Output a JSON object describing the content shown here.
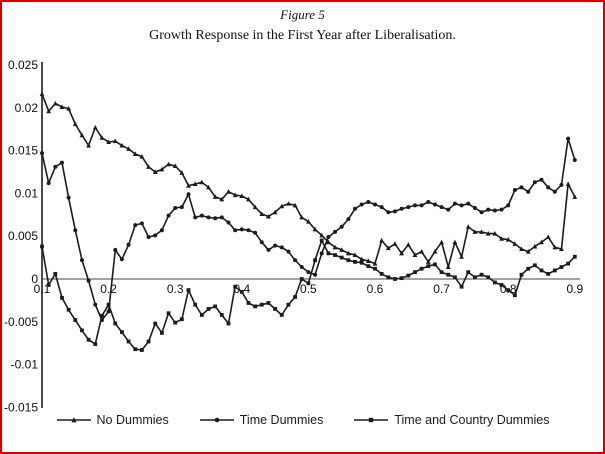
{
  "figure": {
    "label": "Figure 5",
    "title": "Growth Response in the First Year after Liberalisation."
  },
  "chart_data": {
    "type": "line",
    "title": "Growth Response in the First Year after Liberalisation.",
    "xlabel": "",
    "ylabel": "",
    "xlim": [
      0.1,
      0.9
    ],
    "ylim": [
      -0.015,
      0.025
    ],
    "grid": false,
    "legend_position": "bottom",
    "line_color": "#1c1c1c",
    "axis_color": "#4a4a4a",
    "x_tick_labels": [
      "0.1",
      "0.2",
      "0.3",
      "0.4",
      "0.5",
      "0.6",
      "0.7",
      "0.8",
      "0.9"
    ],
    "x_tick_values": [
      0.1,
      0.2,
      0.3,
      0.4,
      0.5,
      0.6,
      0.7,
      0.8,
      0.9
    ],
    "y_tick_labels": [
      "0.025",
      "0.02",
      "0.015",
      "0.01",
      "0.005",
      "0",
      "-0.005",
      "-0.01",
      "-0.015"
    ],
    "y_tick_values": [
      0.025,
      0.02,
      0.015,
      0.01,
      0.005,
      0,
      -0.005,
      -0.01,
      -0.015
    ],
    "x": [
      0.1,
      0.11,
      0.12,
      0.13,
      0.14,
      0.15,
      0.16,
      0.17,
      0.18,
      0.19,
      0.2,
      0.21,
      0.22,
      0.23,
      0.24,
      0.25,
      0.26,
      0.27,
      0.28,
      0.29,
      0.3,
      0.31,
      0.32,
      0.33,
      0.34,
      0.35,
      0.36,
      0.37,
      0.38,
      0.39,
      0.4,
      0.41,
      0.42,
      0.43,
      0.44,
      0.45,
      0.46,
      0.47,
      0.48,
      0.49,
      0.5,
      0.51,
      0.52,
      0.53,
      0.54,
      0.55,
      0.56,
      0.57,
      0.58,
      0.59,
      0.6,
      0.61,
      0.62,
      0.63,
      0.64,
      0.65,
      0.66,
      0.67,
      0.68,
      0.69,
      0.7,
      0.71,
      0.72,
      0.73,
      0.74,
      0.75,
      0.76,
      0.77,
      0.78,
      0.79,
      0.8,
      0.81,
      0.82,
      0.83,
      0.84,
      0.85,
      0.86,
      0.87,
      0.88,
      0.89,
      0.9
    ],
    "series": [
      {
        "name": "No Dummies",
        "marker": "triangle",
        "values": [
          0.0216,
          0.0196,
          0.0205,
          0.0201,
          0.0199,
          0.0181,
          0.0168,
          0.0156,
          0.0177,
          0.0165,
          0.016,
          0.0161,
          0.0156,
          0.0152,
          0.0146,
          0.0143,
          0.0131,
          0.0125,
          0.0128,
          0.0134,
          0.0132,
          0.0124,
          0.0109,
          0.0111,
          0.0113,
          0.0107,
          0.0096,
          0.0093,
          0.0102,
          0.0098,
          0.0097,
          0.0093,
          0.0084,
          0.0076,
          0.0073,
          0.0078,
          0.0085,
          0.0088,
          0.0086,
          0.0072,
          0.0067,
          0.0058,
          0.0051,
          0.0043,
          0.0037,
          0.0034,
          0.003,
          0.0028,
          0.0023,
          0.0021,
          0.0018,
          0.0045,
          0.0036,
          0.0041,
          0.003,
          0.004,
          0.0028,
          0.0032,
          0.002,
          0.0032,
          0.0043,
          0.0014,
          0.0043,
          0.0026,
          0.0061,
          0.0055,
          0.0055,
          0.0053,
          0.0053,
          0.0047,
          0.0046,
          0.0041,
          0.0035,
          0.0032,
          0.0038,
          0.0043,
          0.0049,
          0.0037,
          0.0035,
          0.0111,
          0.0096
        ]
      },
      {
        "name": "Time Dummies",
        "marker": "circle",
        "values": [
          0.0147,
          0.0112,
          0.0131,
          0.0136,
          0.0095,
          0.0057,
          0.0022,
          -0.0002,
          -0.003,
          -0.0048,
          -0.0038,
          0.0034,
          0.0023,
          0.004,
          0.0063,
          0.0065,
          0.0049,
          0.0051,
          0.0057,
          0.0074,
          0.0083,
          0.0084,
          0.0099,
          0.0072,
          0.0074,
          0.0072,
          0.0071,
          0.0072,
          0.0066,
          0.0057,
          0.0058,
          0.0057,
          0.0054,
          0.0043,
          0.0034,
          0.0039,
          0.0037,
          0.0032,
          0.0022,
          0.0014,
          0.0008,
          0.0005,
          0.003,
          0.0049,
          0.0055,
          0.0061,
          0.007,
          0.0082,
          0.0087,
          0.009,
          0.0087,
          0.0084,
          0.0078,
          0.0079,
          0.0082,
          0.0084,
          0.0086,
          0.0086,
          0.009,
          0.0087,
          0.0084,
          0.0081,
          0.0088,
          0.0086,
          0.0088,
          0.0083,
          0.0078,
          0.0081,
          0.008,
          0.0081,
          0.0086,
          0.0104,
          0.0107,
          0.0102,
          0.0113,
          0.0116,
          0.0107,
          0.0102,
          0.011,
          0.0164,
          0.0139
        ]
      },
      {
        "name": "Time and Country Dummies",
        "marker": "square",
        "values": [
          0.0038,
          -0.0007,
          0.0006,
          -0.0022,
          -0.0036,
          -0.0048,
          -0.006,
          -0.0071,
          -0.0076,
          -0.0043,
          -0.003,
          -0.0052,
          -0.0062,
          -0.0073,
          -0.0082,
          -0.0083,
          -0.0073,
          -0.0052,
          -0.0063,
          -0.004,
          -0.0051,
          -0.0047,
          -0.0013,
          -0.003,
          -0.0042,
          -0.0035,
          -0.0032,
          -0.0042,
          -0.0052,
          -0.0009,
          -0.0015,
          -0.0028,
          -0.0032,
          -0.003,
          -0.0028,
          -0.0035,
          -0.0042,
          -0.003,
          -0.0021,
          0.0,
          -0.0005,
          0.0022,
          0.0045,
          0.003,
          0.0028,
          0.0025,
          0.0022,
          0.002,
          0.0019,
          0.0015,
          0.0012,
          0.0006,
          0.0002,
          0.0,
          0.0001,
          0.0004,
          0.0008,
          0.0012,
          0.0015,
          0.0017,
          0.0008,
          0.0005,
          0.0002,
          -0.0009,
          0.0008,
          0.0002,
          0.0005,
          0.0002,
          -0.0004,
          -0.0007,
          -0.0013,
          -0.0019,
          0.0005,
          0.0012,
          0.0016,
          0.001,
          0.0006,
          0.001,
          0.0014,
          0.0018,
          0.0026
        ]
      }
    ]
  }
}
